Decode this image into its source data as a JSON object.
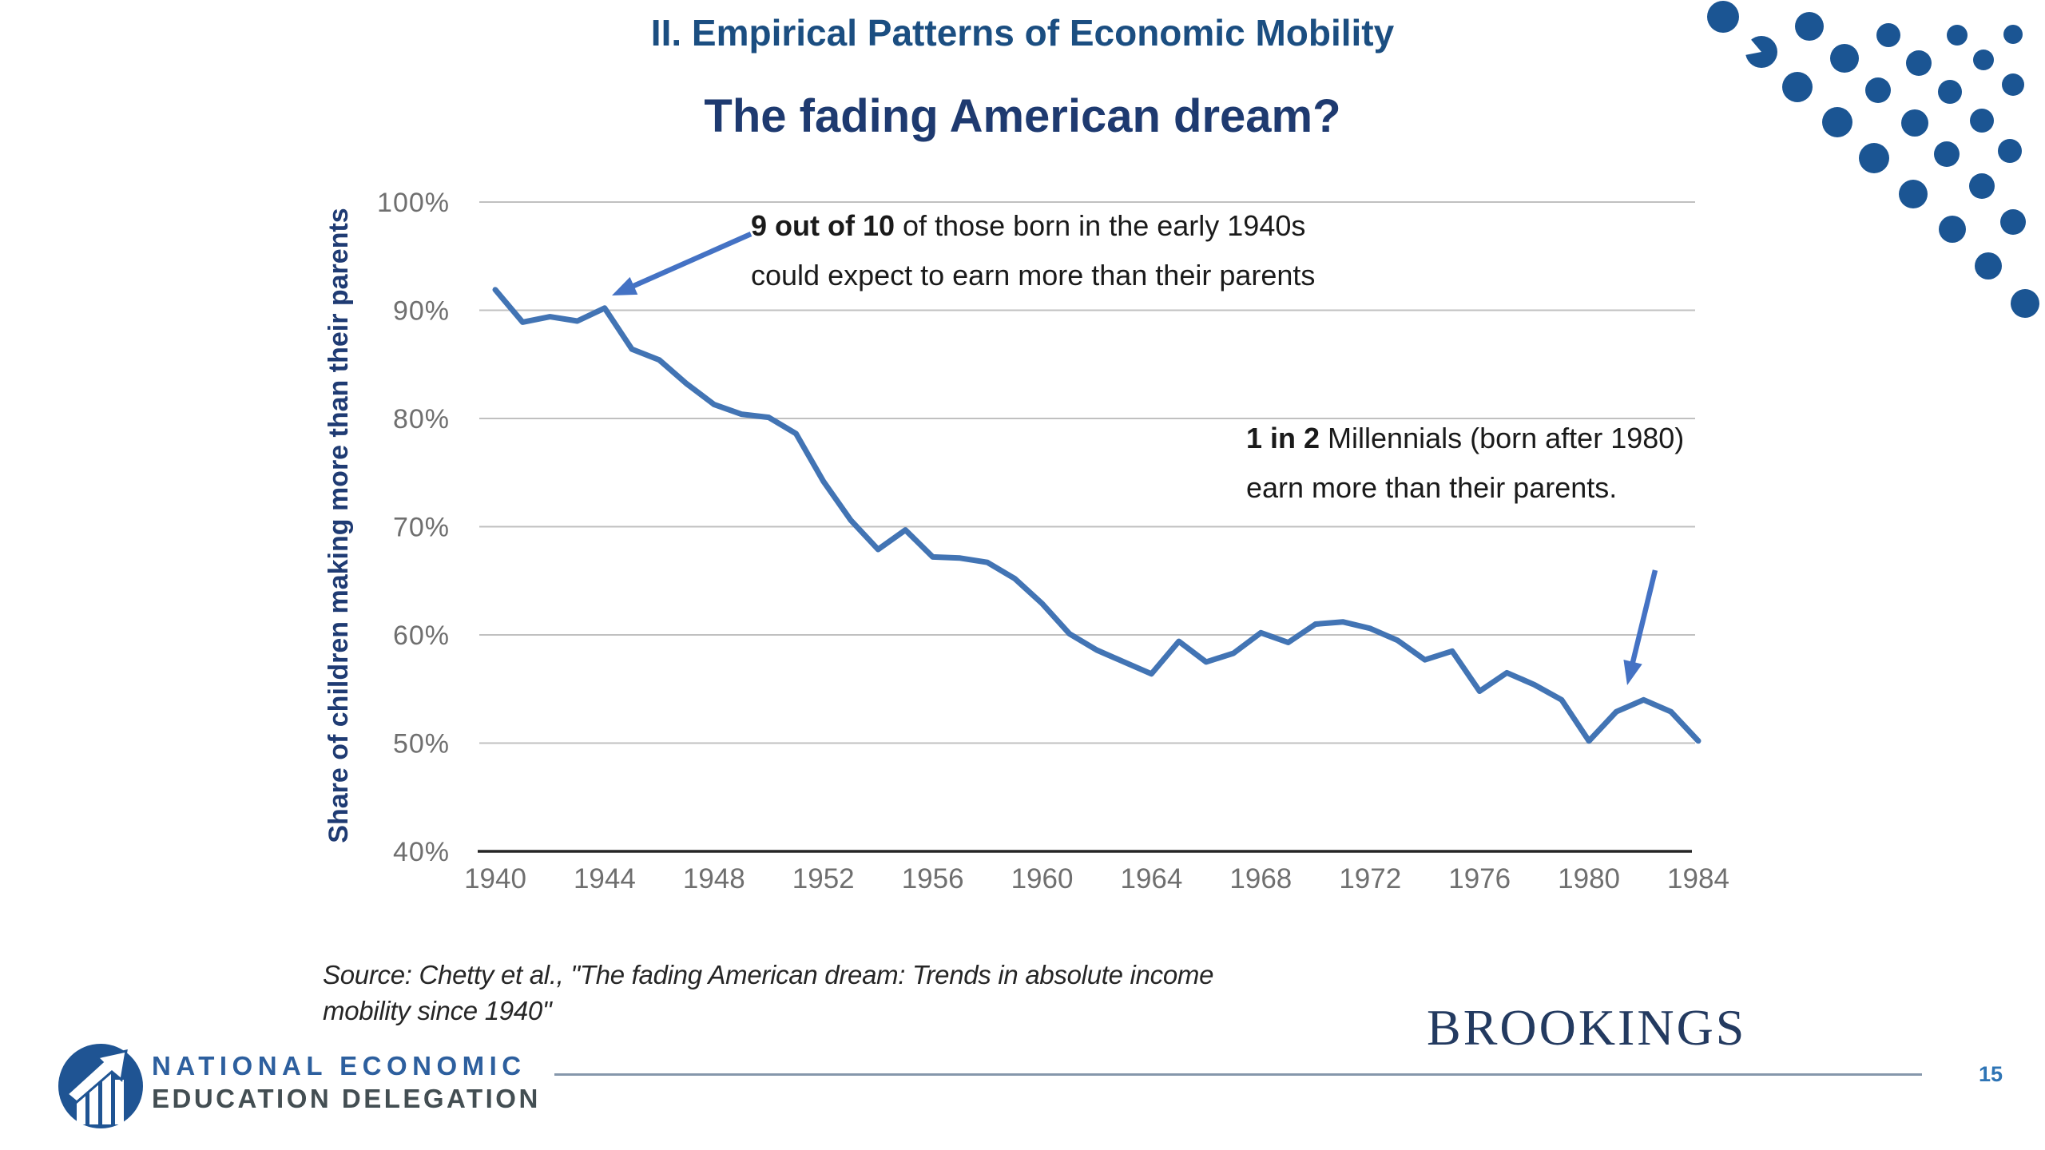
{
  "slide": {
    "kicker": "II. Empirical Patterns of Economic Mobility",
    "page_number": "15"
  },
  "chart_data": {
    "type": "line",
    "title": "The fading American dream?",
    "ylabel": "Share of children making more than their parents",
    "xlabel": "",
    "xlim": [
      1940,
      1984
    ],
    "ylim": [
      40,
      100
    ],
    "grid": true,
    "legend": "none",
    "line_color": "#4274b4",
    "x": [
      1940,
      1941,
      1942,
      1943,
      1944,
      1945,
      1946,
      1947,
      1948,
      1949,
      1950,
      1951,
      1952,
      1953,
      1954,
      1955,
      1956,
      1957,
      1958,
      1959,
      1960,
      1961,
      1962,
      1963,
      1964,
      1965,
      1966,
      1967,
      1968,
      1969,
      1970,
      1971,
      1972,
      1973,
      1974,
      1975,
      1976,
      1977,
      1978,
      1979,
      1980,
      1981,
      1982,
      1983,
      1984
    ],
    "values": [
      91.9,
      88.9,
      89.4,
      89.0,
      90.2,
      86.4,
      85.4,
      83.2,
      81.3,
      80.4,
      80.1,
      78.6,
      74.2,
      70.6,
      67.9,
      69.7,
      67.2,
      67.1,
      66.7,
      65.2,
      62.9,
      60.1,
      58.6,
      57.5,
      56.4,
      59.4,
      57.5,
      58.3,
      60.2,
      59.3,
      61.0,
      61.2,
      60.6,
      59.5,
      57.7,
      58.5,
      54.8,
      56.5,
      55.4,
      54.0,
      50.2,
      52.9,
      54.0,
      52.9,
      50.2
    ],
    "x_ticks": [
      1940,
      1944,
      1948,
      1952,
      1956,
      1960,
      1964,
      1968,
      1972,
      1976,
      1980,
      1984
    ],
    "y_ticks": [
      "100%",
      "90%",
      "80%",
      "70%",
      "60%",
      "50%",
      "40%"
    ]
  },
  "annotations": {
    "early": {
      "bold": "9 out of 10",
      "rest": " of those born in the early 1940s",
      "line2": "could expect to earn more than their parents"
    },
    "millennials": {
      "bold": "1 in 2",
      "rest": " Millennials (born after 1980)",
      "line2": "earn more than their parents."
    }
  },
  "arrows": [
    {
      "from": [
        940,
        293
      ],
      "to": [
        766,
        370
      ]
    },
    {
      "from": [
        2072,
        714
      ],
      "to": [
        2037,
        858
      ]
    }
  ],
  "source": {
    "line1": "Source: Chetty et al., \"The fading American dream: Trends in absolute income",
    "line2": "mobility since 1940\""
  },
  "footer": {
    "org_line1": "NATIONAL ECONOMIC",
    "org_line2": "EDUCATION DELEGATION",
    "brookings": "BROOKINGS"
  },
  "decor": {
    "dot_color": "#1b5593",
    "arrow_color": "#4472c4",
    "dots": [
      [
        2157,
        21,
        20
      ],
      [
        2205,
        65,
        20
      ],
      [
        2265,
        33,
        18
      ],
      [
        2309,
        73,
        18
      ],
      [
        2250,
        109,
        19
      ],
      [
        2364,
        44,
        15
      ],
      [
        2402,
        79,
        16
      ],
      [
        2351,
        113,
        16
      ],
      [
        2450,
        44,
        13
      ],
      [
        2483,
        75,
        13
      ],
      [
        2441,
        115,
        15
      ],
      [
        2520,
        43,
        12
      ],
      [
        2520,
        106,
        14
      ],
      [
        2300,
        153,
        19
      ],
      [
        2397,
        154,
        17
      ],
      [
        2481,
        151,
        15
      ],
      [
        2346,
        198,
        19
      ],
      [
        2437,
        193,
        16
      ],
      [
        2516,
        189,
        15
      ],
      [
        2395,
        243,
        18
      ],
      [
        2481,
        233,
        16
      ],
      [
        2444,
        287,
        17
      ],
      [
        2520,
        278,
        16
      ],
      [
        2489,
        333,
        17
      ],
      [
        2535,
        380,
        18
      ]
    ]
  }
}
